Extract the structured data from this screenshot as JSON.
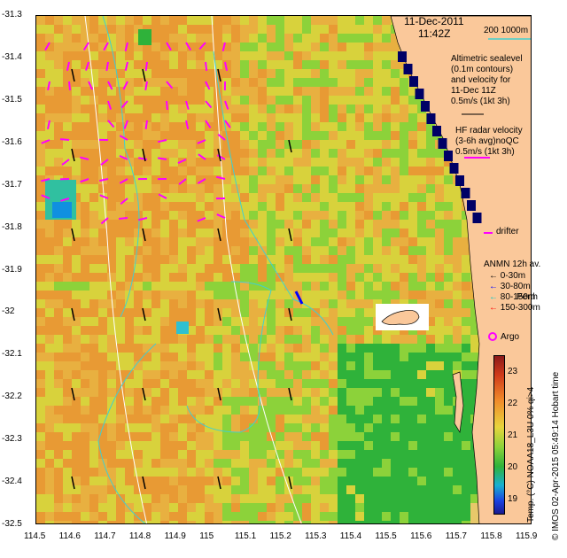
{
  "title": {
    "date": "11-Dec-2011",
    "time": "11:42Z"
  },
  "depth_contours_label": "200  1000m",
  "altimetry_legend": [
    "Altimetric sealevel",
    "(0.1m contours)",
    "and velocity for",
    "11-Dec 11Z",
    "0.5m/s (1kt 3h)"
  ],
  "hf_radar_legend": [
    "HF radar velocity",
    "(3-6h avg)noQC",
    "0.5m/s (1kt 3h)"
  ],
  "drifter_label": "drifter",
  "anmn_legend": {
    "title": "ANMN 12h av.",
    "items": [
      {
        "label": "0-30m",
        "color": "#000000"
      },
      {
        "label": "30-80m",
        "color": "#0000ff"
      },
      {
        "label": "80-150m",
        "color": "#00cccc"
      },
      {
        "label": "150-300m",
        "color": "#ff0000"
      }
    ]
  },
  "perth_label": "Perth",
  "argo_label": "Argo",
  "colorbar": {
    "ticks": [
      "23",
      "22",
      "21",
      "20",
      "19"
    ],
    "label": "Temp. (°C) NOAA18_L3U 0% qi>4"
  },
  "credit": "© IMOS 02-Apr-2015 05:49:14 Hobart time",
  "x_axis": {
    "ticks": [
      "114.5",
      "114.6",
      "114.7",
      "114.8",
      "114.9",
      "115",
      "115.1",
      "115.2",
      "115.3",
      "115.4",
      "115.5",
      "115.6",
      "115.7",
      "115.8",
      "115.9"
    ]
  },
  "y_axis": {
    "ticks": [
      "-31.3",
      "-31.4",
      "-31.5",
      "-31.6",
      "-31.7",
      "-31.8",
      "-31.9",
      "-32",
      "-32.1",
      "-32.2",
      "-32.3",
      "-32.4",
      "-32.5"
    ]
  },
  "colors": {
    "land": "#fac89a",
    "warm": "#e8a23a",
    "mid": "#d8d23c",
    "cool": "#2fb23a",
    "contour": "#40d0d0",
    "radar_arrow": "#ff00ff",
    "depth_line": "#ffffff",
    "deep_water": "#000066"
  }
}
